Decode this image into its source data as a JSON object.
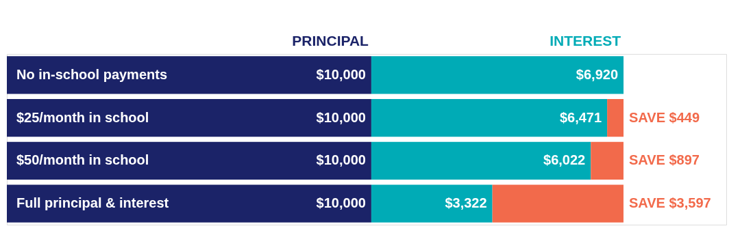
{
  "chart_data": {
    "type": "bar",
    "orientation": "horizontal",
    "stacked": true,
    "categories": [
      "No in-school payments",
      "$25/month in school",
      "$50/month in school",
      "Full principal & interest"
    ],
    "series": [
      {
        "name": "PRINCIPAL",
        "color": "#1b2368",
        "values": [
          10000,
          10000,
          10000,
          10000
        ],
        "value_labels": [
          "$10,000",
          "$10,000",
          "$10,000",
          "$10,000"
        ]
      },
      {
        "name": "INTEREST",
        "color": "#00abb6",
        "values": [
          6920,
          6471,
          6022,
          3322
        ],
        "value_labels": [
          "$6,920",
          "$6,471",
          "$6,022",
          "$3,322"
        ]
      },
      {
        "color": "#f26a4b",
        "values": [
          null,
          449,
          897,
          3597
        ],
        "value_labels": [
          null,
          "SAVE $449",
          "SAVE $897",
          "SAVE $3,597"
        ]
      }
    ]
  }
}
